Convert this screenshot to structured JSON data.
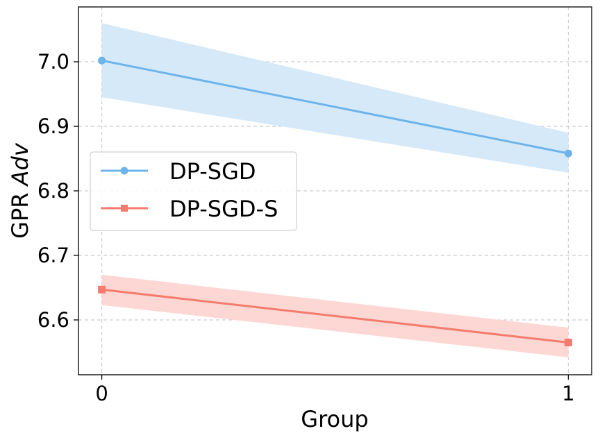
{
  "chart_data": {
    "type": "line",
    "title": "",
    "xlabel": "Group",
    "ylabel_prefix": "GPR ",
    "ylabel_italic": "Adv",
    "x": [
      0,
      1
    ],
    "xtick_labels": [
      "0",
      "1"
    ],
    "ylim": [
      6.515,
      7.085
    ],
    "xlim": [
      -0.05,
      1.05
    ],
    "yticks": [
      6.6,
      6.7,
      6.8,
      6.9,
      7.0
    ],
    "ytick_labels": [
      "6.6",
      "6.7",
      "6.8",
      "6.9",
      "7.0"
    ],
    "grid": true,
    "legend_position": "center-left",
    "series": [
      {
        "name": "DP-SGD",
        "values": [
          7.002,
          6.858
        ],
        "lower": [
          6.945,
          6.828
        ],
        "upper": [
          7.06,
          6.89
        ],
        "color": "#6cb4ea",
        "band_color": "#d6e9f8",
        "marker": "circle"
      },
      {
        "name": "DP-SGD-S",
        "values": [
          6.647,
          6.565
        ],
        "lower": [
          6.623,
          6.542
        ],
        "upper": [
          6.67,
          6.588
        ],
        "color": "#f47b6e",
        "band_color": "#fcd7d3",
        "marker": "square"
      }
    ]
  }
}
